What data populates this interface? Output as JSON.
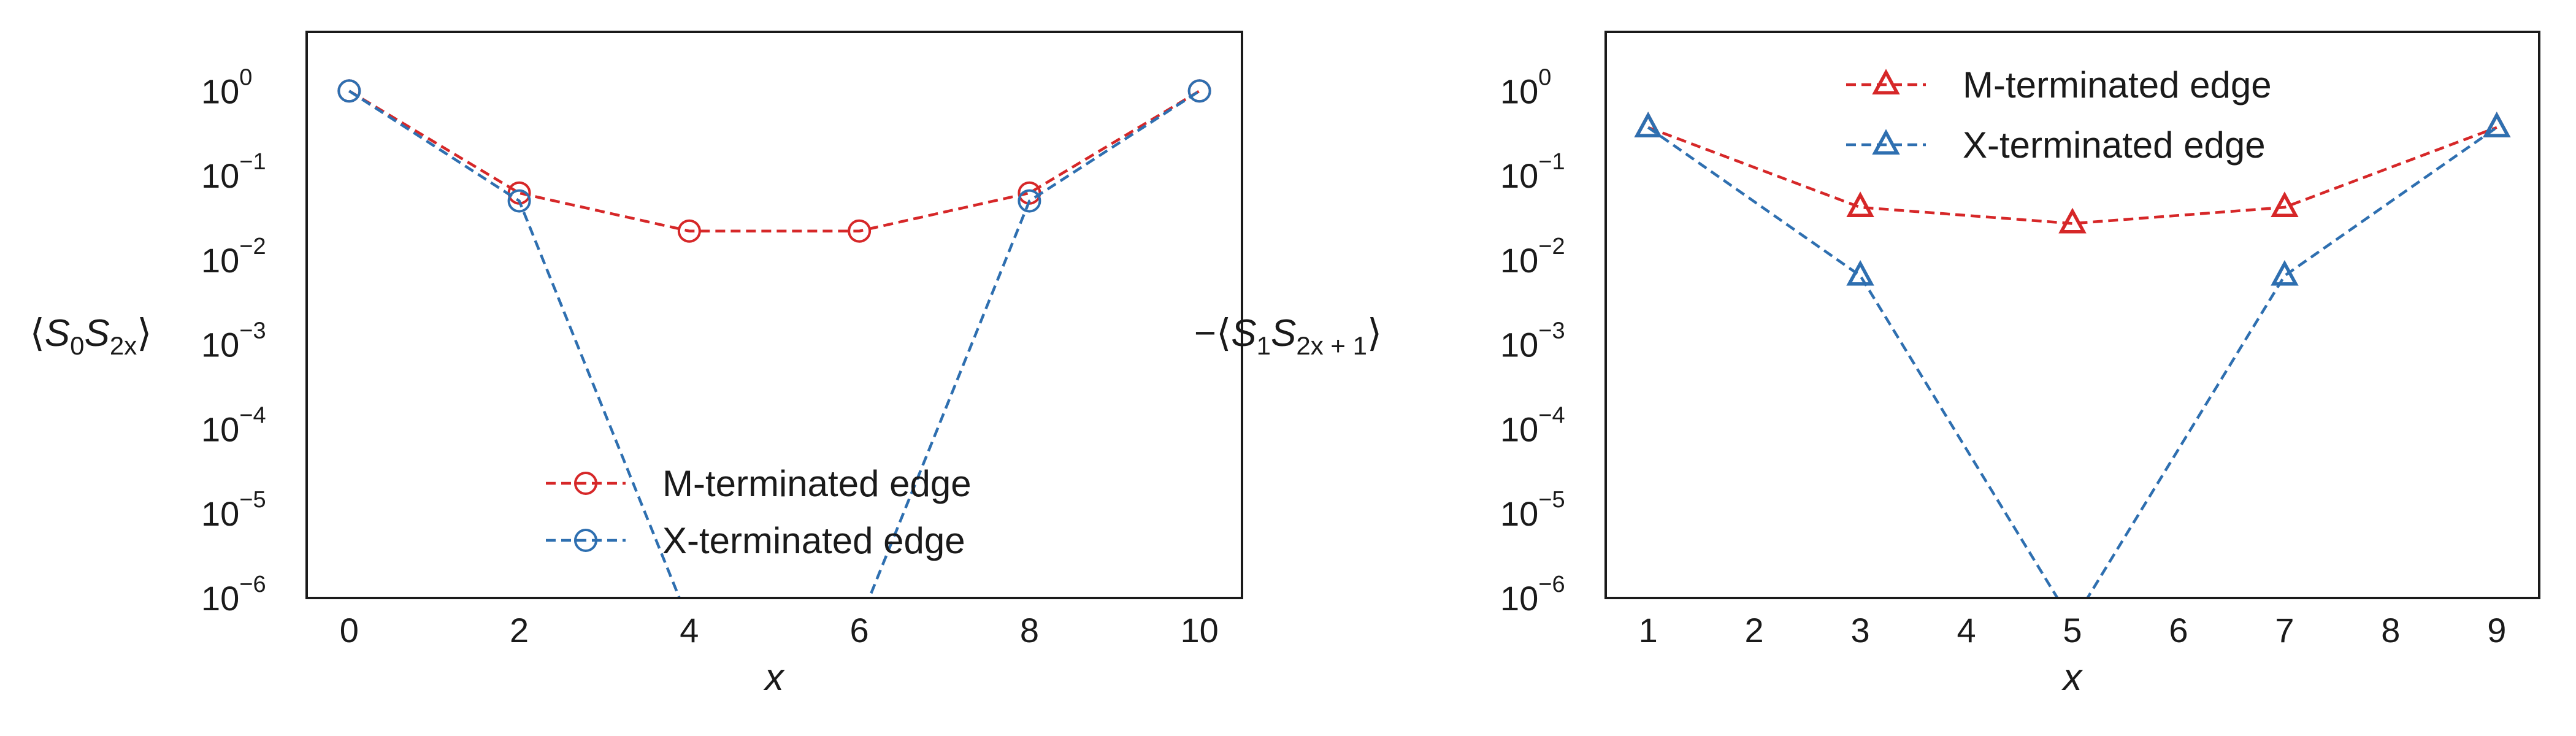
{
  "chart_data": [
    {
      "type": "line",
      "yscale": "log",
      "xlabel": "x",
      "ylabel": "⟨S0 S2x⟩",
      "ylabel_parts": {
        "open": "⟨",
        "s": "S",
        "sub1": "0",
        "sub2": "2x",
        "close": "⟩",
        "prefix": ""
      },
      "xlim": [
        -0.5,
        10.5
      ],
      "ylim": [
        1e-06,
        5
      ],
      "xticks": [
        0,
        2,
        4,
        6,
        8,
        10
      ],
      "yticks": [
        {
          "value": 1.0,
          "base": "10",
          "exp": "0"
        },
        {
          "value": 0.1,
          "base": "10",
          "exp": "−1"
        },
        {
          "value": 0.01,
          "base": "10",
          "exp": "−2"
        },
        {
          "value": 0.001,
          "base": "10",
          "exp": "−3"
        },
        {
          "value": 0.0001,
          "base": "10",
          "exp": "−4"
        },
        {
          "value": 1e-05,
          "base": "10",
          "exp": "−5"
        },
        {
          "value": 1e-06,
          "base": "10",
          "exp": "−6"
        }
      ],
      "grid": false,
      "legend_position": "lower center",
      "x": [
        0,
        2,
        4,
        6,
        8,
        10
      ],
      "series": [
        {
          "name": "M-terminated edge",
          "color": "#d62728",
          "marker": "circle",
          "values": [
            1.0,
            0.062,
            0.022,
            0.022,
            0.062,
            1.0
          ]
        },
        {
          "name": "X-terminated edge",
          "color": "#2e6fb0",
          "marker": "circle",
          "values": [
            1.0,
            0.05,
            0,
            0,
            0.05,
            1.0
          ]
        }
      ]
    },
    {
      "type": "line",
      "yscale": "log",
      "xlabel": "x",
      "ylabel": "−⟨S1 S2x+1⟩",
      "ylabel_parts": {
        "open": "⟨",
        "s": "S",
        "sub1": "1",
        "sub2": "2x + 1",
        "close": "⟩",
        "prefix": "−"
      },
      "xlim": [
        0.6,
        9.4
      ],
      "ylim": [
        1e-06,
        5
      ],
      "xticks": [
        1,
        2,
        3,
        4,
        5,
        6,
        7,
        8,
        9
      ],
      "yticks": [
        {
          "value": 1.0,
          "base": "10",
          "exp": "0"
        },
        {
          "value": 0.1,
          "base": "10",
          "exp": "−1"
        },
        {
          "value": 0.01,
          "base": "10",
          "exp": "−2"
        },
        {
          "value": 0.001,
          "base": "10",
          "exp": "−3"
        },
        {
          "value": 0.0001,
          "base": "10",
          "exp": "−4"
        },
        {
          "value": 1e-05,
          "base": "10",
          "exp": "−5"
        },
        {
          "value": 1e-06,
          "base": "10",
          "exp": "−6"
        }
      ],
      "grid": false,
      "legend_position": "upper center",
      "x": [
        1,
        3,
        5,
        7,
        9
      ],
      "series": [
        {
          "name": "M-terminated edge",
          "color": "#d62728",
          "marker": "triangle",
          "values": [
            0.37,
            0.042,
            0.027,
            0.042,
            0.37
          ]
        },
        {
          "name": "X-terminated edge",
          "color": "#2e6fb0",
          "marker": "triangle",
          "values": [
            0.37,
            0.0065,
            0,
            0.0065,
            0.37
          ]
        }
      ]
    }
  ]
}
